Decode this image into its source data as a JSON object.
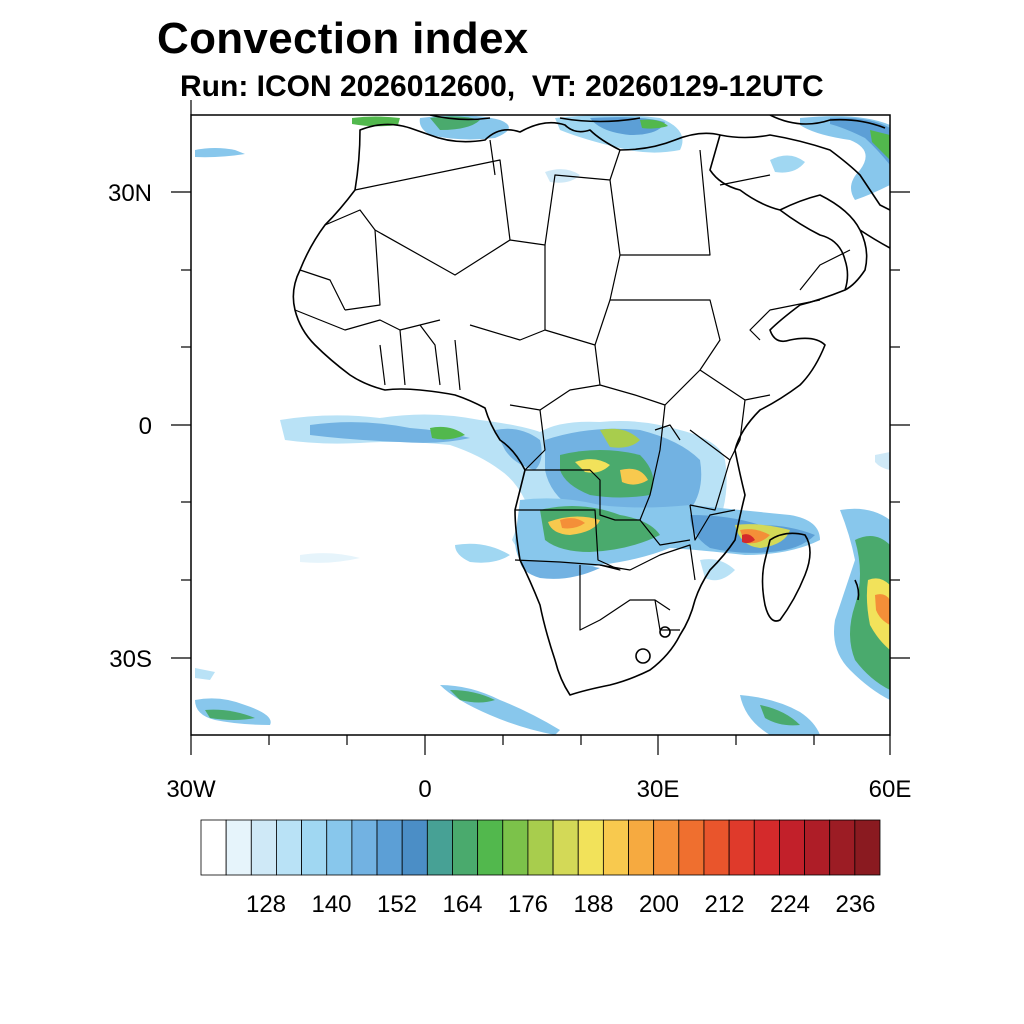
{
  "title": "Convection index",
  "subtitle": "Run: ICON 2026012600,  VT: 20260129-12UTC",
  "map": {
    "region": "Africa",
    "lon_range": [
      -30,
      60
    ],
    "lat_range": [
      -40,
      40
    ],
    "lon_labels": [
      {
        "value": -30,
        "label": "30W"
      },
      {
        "value": 0,
        "label": "0"
      },
      {
        "value": 30,
        "label": "30E"
      },
      {
        "value": 60,
        "label": "60E"
      }
    ],
    "lat_labels": [
      {
        "value": 30,
        "label": "30N"
      },
      {
        "value": 0,
        "label": "0"
      },
      {
        "value": -30,
        "label": "30S"
      }
    ]
  },
  "colorbar": {
    "colors": [
      "#ffffff",
      "#e6f4fb",
      "#cfe9f7",
      "#b9e2f6",
      "#a0d7f2",
      "#88c7ec",
      "#72b2e2",
      "#5c9fd6",
      "#4b8ec6",
      "#47a195",
      "#4aaa6d",
      "#52b84d",
      "#7cc24a",
      "#a8cd4d",
      "#d3d957",
      "#f2e25a",
      "#f8c94e",
      "#f6aa40",
      "#f48f38",
      "#ef6f2f",
      "#e9552c",
      "#df3a2b",
      "#d42a2b",
      "#c2202a",
      "#ae1d27",
      "#9c1c24",
      "#8a1a20"
    ],
    "labels": [
      "128",
      "140",
      "152",
      "164",
      "176",
      "188",
      "200",
      "212",
      "224",
      "236"
    ]
  }
}
